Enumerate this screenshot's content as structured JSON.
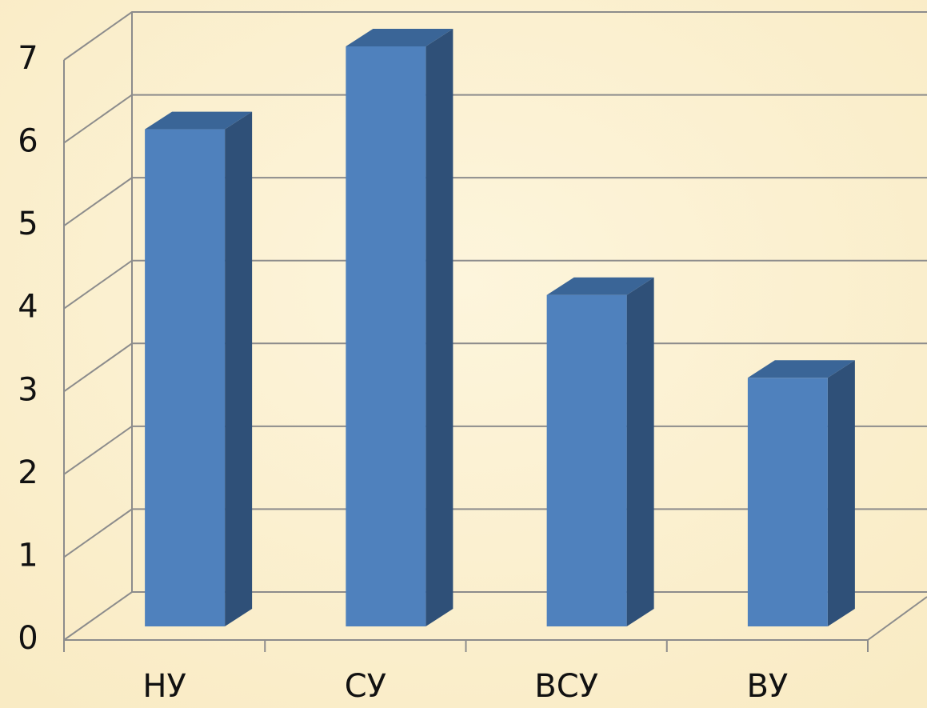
{
  "chart_data": {
    "type": "bar3d",
    "categories": [
      "НУ",
      "СУ",
      "ВСУ",
      "ВУ"
    ],
    "values": [
      6,
      7,
      4,
      3
    ],
    "color": "#4f81bd",
    "ylim": [
      0,
      7
    ],
    "yticks": [
      0,
      1,
      2,
      3,
      4,
      5,
      6,
      7
    ],
    "grid": true
  }
}
